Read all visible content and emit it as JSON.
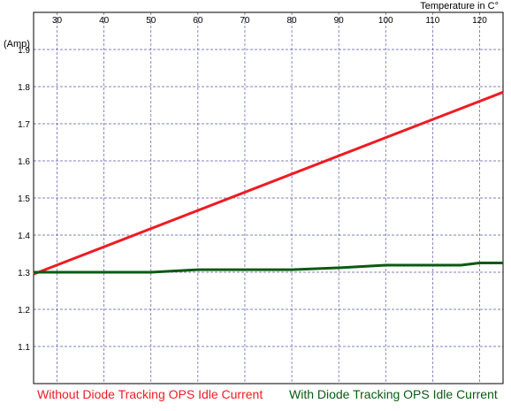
{
  "chart_data": {
    "type": "line",
    "xlabel": "Temperature in C°",
    "ylabel": "(Amp)",
    "xlim": [
      25,
      125
    ],
    "ylim": [
      1.0,
      2.0
    ],
    "x_ticks": [
      30,
      40,
      50,
      60,
      70,
      80,
      90,
      100,
      110,
      120
    ],
    "y_ticks": [
      1.1,
      1.2,
      1.3,
      1.4,
      1.5,
      1.6,
      1.7,
      1.8,
      1.9
    ],
    "grid": true,
    "series": [
      {
        "name": "Without Diode Tracking OPS Idle Current",
        "color": "#ee1c24",
        "x": [
          25,
          125
        ],
        "y": [
          1.295,
          1.785
        ]
      },
      {
        "name": "With Diode Tracking OPS Idle Current",
        "color": "#0a5a12",
        "x": [
          25,
          50,
          60,
          80,
          90,
          100,
          116,
          120,
          125
        ],
        "y": [
          1.3,
          1.3,
          1.307,
          1.307,
          1.312,
          1.319,
          1.319,
          1.325,
          1.325
        ]
      }
    ]
  }
}
